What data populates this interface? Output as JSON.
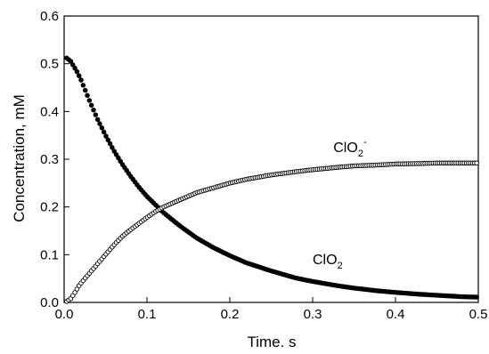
{
  "chart_data": {
    "type": "scatter",
    "title": "",
    "xlabel": "Time. s",
    "ylabel": "Concentration, mM",
    "xlim": [
      0,
      0.5
    ],
    "ylim": [
      0,
      0.6
    ],
    "xticks": [
      0.0,
      0.1,
      0.2,
      0.3,
      0.4,
      0.5
    ],
    "xtick_labels": [
      "0.0",
      "0.1",
      "0.2",
      "0.3",
      "0.4",
      "0.5"
    ],
    "yticks": [
      0.0,
      0.1,
      0.2,
      0.3,
      0.4,
      0.5,
      0.6
    ],
    "ytick_labels": [
      "0.0",
      "0.1",
      "0.2",
      "0.3",
      "0.4",
      "0.5",
      "0.6"
    ],
    "grid": false,
    "series": [
      {
        "name": "ClO2",
        "marker": "filled-circle",
        "color": "#000000",
        "x": [
          0.003,
          0.008,
          0.015,
          0.02,
          0.03,
          0.04,
          0.05,
          0.06,
          0.07,
          0.08,
          0.09,
          0.1,
          0.12,
          0.14,
          0.16,
          0.18,
          0.2,
          0.22,
          0.25,
          0.28,
          0.3,
          0.33,
          0.35,
          0.38,
          0.4,
          0.43,
          0.45,
          0.48,
          0.5
        ],
        "y": [
          0.512,
          0.505,
          0.485,
          0.468,
          0.425,
          0.385,
          0.35,
          0.318,
          0.29,
          0.265,
          0.242,
          0.222,
          0.188,
          0.16,
          0.135,
          0.115,
          0.098,
          0.083,
          0.066,
          0.051,
          0.044,
          0.035,
          0.03,
          0.024,
          0.021,
          0.017,
          0.015,
          0.012,
          0.011
        ]
      },
      {
        "name": "ClO2-",
        "marker": "open-circle",
        "color": "#000000",
        "x": [
          0.003,
          0.008,
          0.012,
          0.018,
          0.025,
          0.03,
          0.04,
          0.05,
          0.06,
          0.07,
          0.08,
          0.09,
          0.1,
          0.11,
          0.12,
          0.14,
          0.16,
          0.18,
          0.2,
          0.22,
          0.25,
          0.28,
          0.3,
          0.33,
          0.35,
          0.38,
          0.4,
          0.43,
          0.45,
          0.48,
          0.5
        ],
        "y": [
          0.002,
          0.008,
          0.018,
          0.035,
          0.05,
          0.06,
          0.08,
          0.1,
          0.12,
          0.138,
          0.152,
          0.165,
          0.178,
          0.19,
          0.2,
          0.215,
          0.23,
          0.24,
          0.25,
          0.258,
          0.267,
          0.274,
          0.278,
          0.283,
          0.286,
          0.288,
          0.29,
          0.291,
          0.292,
          0.292,
          0.292
        ]
      }
    ],
    "annotations": [
      {
        "main": "ClO",
        "sub": "2",
        "sup": "-",
        "x": 0.325,
        "y": 0.315
      },
      {
        "main": "ClO",
        "sub": "2",
        "sup": "",
        "x": 0.3,
        "y": 0.08
      }
    ]
  }
}
